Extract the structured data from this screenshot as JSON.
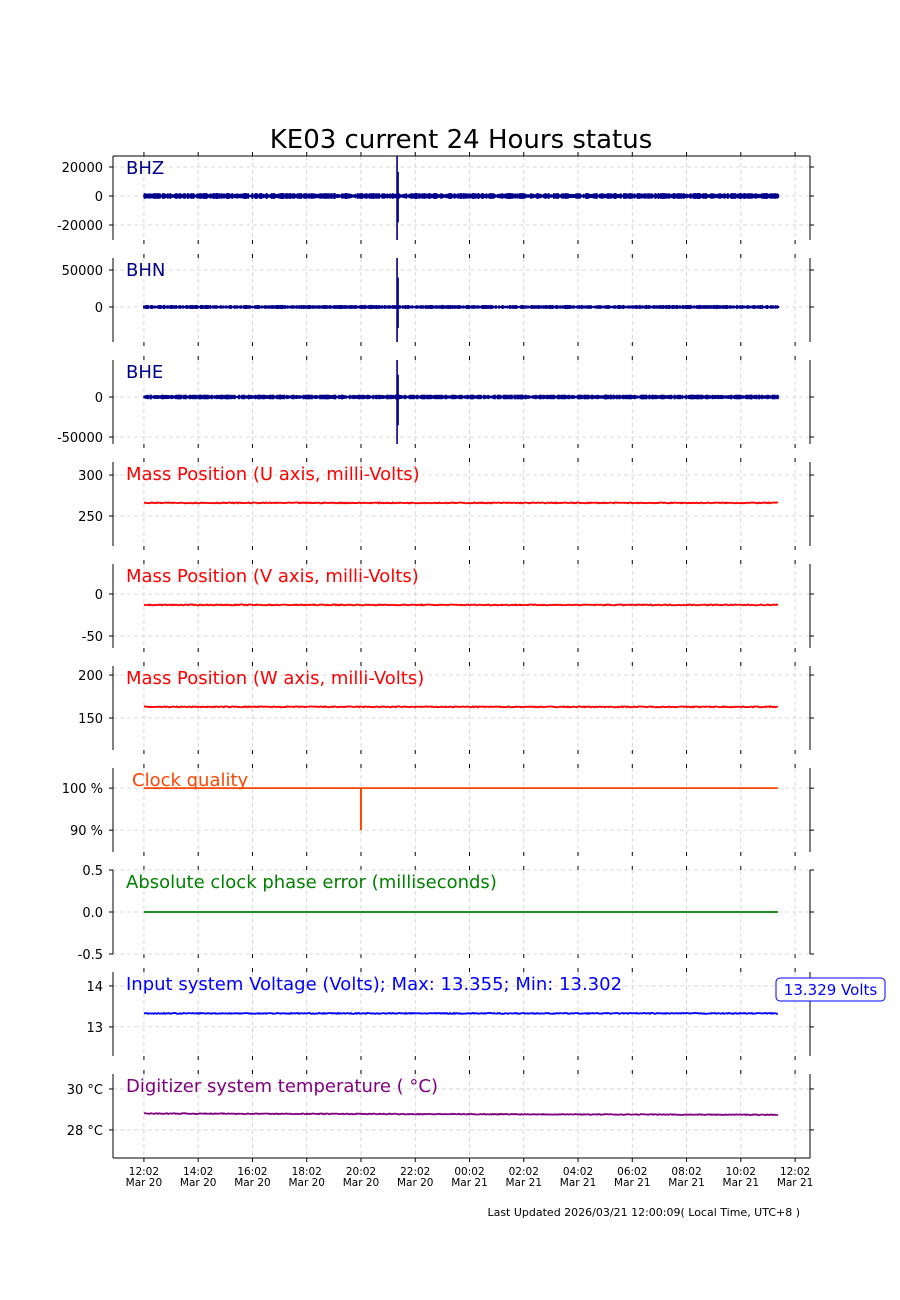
{
  "chart_data": {
    "type": "line",
    "title": "KE03 current 24 Hours status",
    "x_unit": "hours since Mar 20 12:02",
    "xlim": [
      -1.14,
      24.55
    ],
    "x_ticks": [
      {
        "h": 0,
        "time": "12:02",
        "date": "Mar 20"
      },
      {
        "h": 2,
        "time": "14:02",
        "date": "Mar 20"
      },
      {
        "h": 4,
        "time": "16:02",
        "date": "Mar 20"
      },
      {
        "h": 6,
        "time": "18:02",
        "date": "Mar 20"
      },
      {
        "h": 8,
        "time": "20:02",
        "date": "Mar 20"
      },
      {
        "h": 10,
        "time": "22:02",
        "date": "Mar 20"
      },
      {
        "h": 12,
        "time": "00:02",
        "date": "Mar 21"
      },
      {
        "h": 14,
        "time": "02:02",
        "date": "Mar 21"
      },
      {
        "h": 16,
        "time": "04:02",
        "date": "Mar 21"
      },
      {
        "h": 18,
        "time": "06:02",
        "date": "Mar 21"
      },
      {
        "h": 20,
        "time": "08:02",
        "date": "Mar 21"
      },
      {
        "h": 22,
        "time": "10:02",
        "date": "Mar 21"
      },
      {
        "h": 24,
        "time": "12:02",
        "date": "Mar 21"
      }
    ],
    "data_range_hours": [
      0,
      23.4
    ],
    "panels": [
      {
        "label": "BHZ",
        "color": "#00008b",
        "kind": "seismic",
        "ylim": [
          -30345,
          27586
        ],
        "yticks": [
          20000,
          0,
          -20000
        ],
        "tick_labels": [
          "20000",
          "0",
          "-20000"
        ],
        "baseline": 0,
        "noise": 1500,
        "event_h": 9.33,
        "event_amp": [
          27586,
          -30345
        ]
      },
      {
        "label": "BHN",
        "color": "#00008b",
        "kind": "seismic",
        "ylim": [
          -47297,
          66216
        ],
        "yticks": [
          50000,
          0
        ],
        "tick_labels": [
          "50000",
          "0"
        ],
        "baseline": 0,
        "noise": 2000,
        "event_h": 9.33,
        "event_amp": [
          66216,
          -47297
        ]
      },
      {
        "label": "BHE",
        "color": "#00008b",
        "kind": "seismic",
        "ylim": [
          -58750,
          46250
        ],
        "yticks": [
          0,
          -50000
        ],
        "tick_labels": [
          "0",
          "-50000"
        ],
        "baseline": 0,
        "noise": 2200,
        "event_h": 9.33,
        "event_amp": [
          46250,
          -58750
        ]
      },
      {
        "label": "Mass Position (U axis, milli-Volts)",
        "color": "#ff0000",
        "kind": "line",
        "ylim": [
          213.4,
          315.9
        ],
        "yticks": [
          300,
          250
        ],
        "tick_labels": [
          "300",
          "250"
        ],
        "baseline": 266,
        "noise": 0.6
      },
      {
        "label": "Mass Position (V axis, milli-Volts)",
        "color": "#ff0000",
        "kind": "line",
        "ylim": [
          -64.3,
          35.7
        ],
        "yticks": [
          0,
          -50
        ],
        "tick_labels": [
          "0",
          "-50"
        ],
        "baseline": -13,
        "noise": 0.6
      },
      {
        "label": "Mass Position (W axis, milli-Volts)",
        "color": "#ff0000",
        "kind": "line",
        "ylim": [
          112.8,
          210.5
        ],
        "yticks": [
          200,
          150
        ],
        "tick_labels": [
          "200",
          "150"
        ],
        "baseline": 163,
        "noise": 0.6
      },
      {
        "label": "Clock quality",
        "color": "#ff4500",
        "kind": "line",
        "ylim": [
          84.8,
          104.8
        ],
        "yticks": [
          100,
          90
        ],
        "tick_labels": [
          "100 %",
          "90 %"
        ],
        "baseline": 100,
        "noise": 0,
        "dip_h": 8.0,
        "dip_value": 90
      },
      {
        "label": "Absolute clock phase error (milliseconds)",
        "color": "#008000",
        "kind": "line",
        "ylim": [
          -0.5,
          0.5
        ],
        "yticks": [
          0.5,
          0.0,
          -0.5
        ],
        "tick_labels": [
          "0.5",
          "0.0",
          "-0.5"
        ],
        "baseline": 0,
        "noise": 0
      },
      {
        "label": "Input system Voltage (Volts);    Max: 13.355; Min: 13.302",
        "color": "#0000ff",
        "kind": "line",
        "ylim": [
          12.29,
          14.34
        ],
        "yticks": [
          14,
          13
        ],
        "tick_labels": [
          "14",
          "13"
        ],
        "baseline": 13.33,
        "noise": 0.012,
        "current_label": "13.329 Volts"
      },
      {
        "label": "Digitizer system temperature ( °C)",
        "color": "#800080",
        "kind": "line",
        "ylim": [
          26.63,
          30.73
        ],
        "yticks": [
          30,
          28
        ],
        "tick_labels": [
          "30 °C",
          "28 °C"
        ],
        "baseline": 28.8,
        "end_value": 28.74,
        "noise": 0.02
      }
    ],
    "footer": "Last Updated 2026/03/21 12:00:09( Local Time, UTC+8 )"
  }
}
